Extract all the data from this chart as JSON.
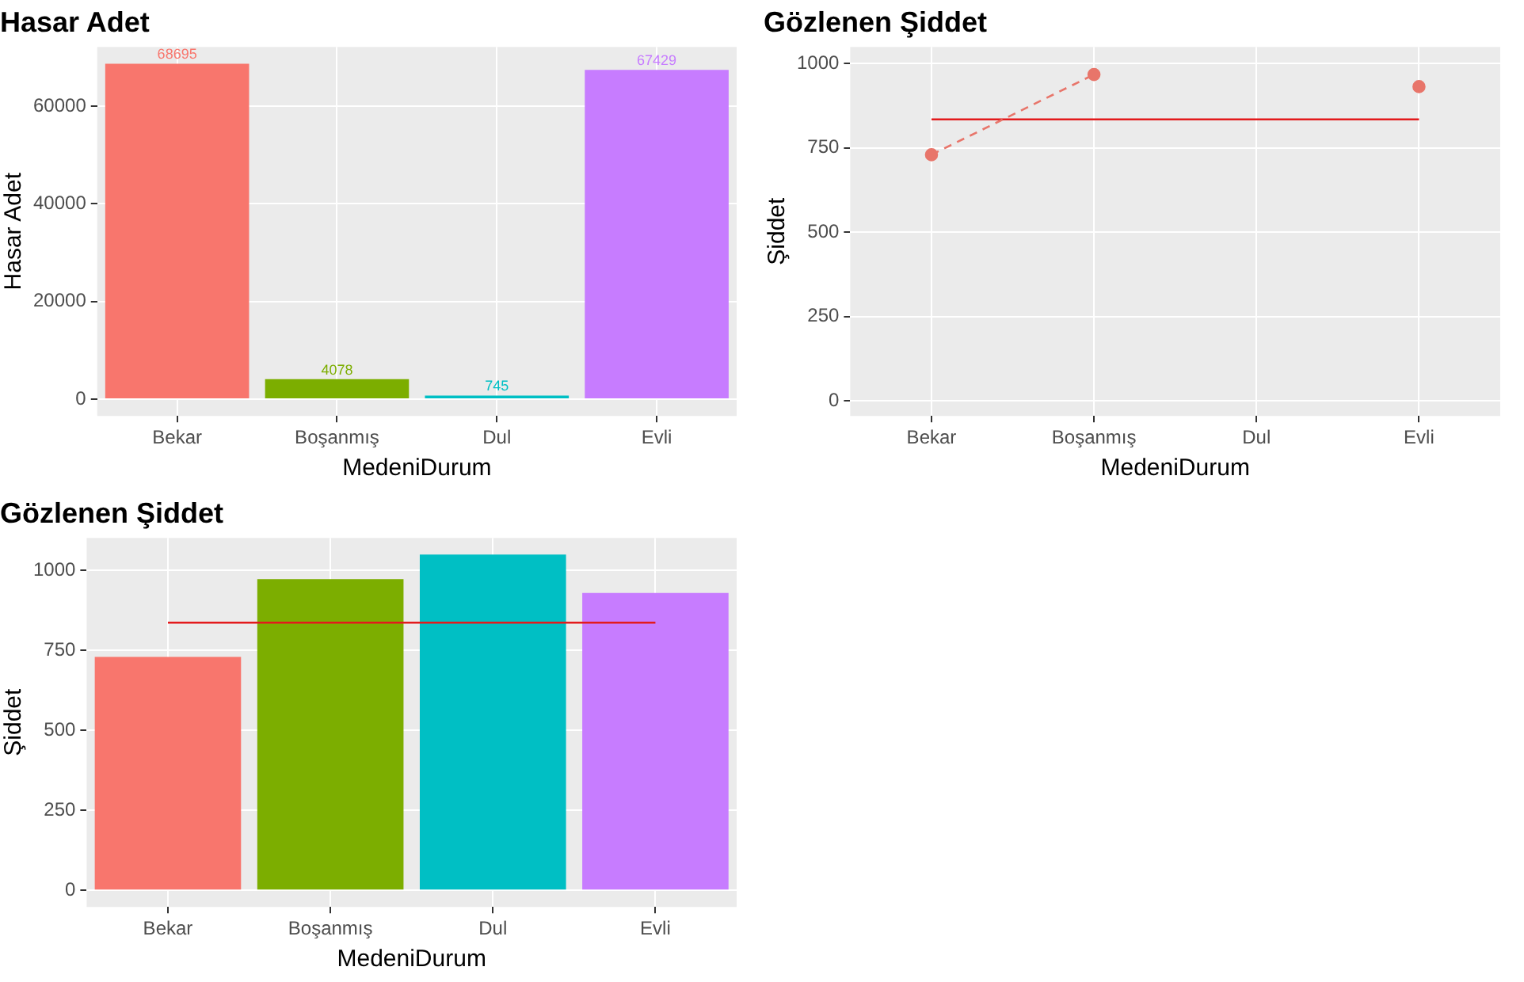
{
  "chart_data": [
    {
      "type": "bar",
      "title": "Hasar Adet",
      "xlabel": "MedeniDurum",
      "ylabel": "Hasar Adet",
      "categories": [
        "Bekar",
        "Boşanmış",
        "Dul",
        "Evli"
      ],
      "values": [
        68695,
        4078,
        745,
        67429
      ],
      "colors": [
        "#f8766d",
        "#7cae00",
        "#00bfc4",
        "#c77cff"
      ],
      "ylim": [
        -3435,
        72130
      ],
      "yticks": [
        0,
        20000,
        40000,
        60000
      ],
      "grid": true,
      "data_labels": true
    },
    {
      "type": "line",
      "title": "Gözlenen Şiddet",
      "xlabel": "MedeniDurum",
      "ylabel": "Şiddet",
      "categories": [
        "Bekar",
        "Boşanmış",
        "Dul",
        "Evli"
      ],
      "series": [
        {
          "color": "#e8756a",
          "values": [
            730,
            968,
            null,
            932
          ],
          "marker": "circle",
          "line_style": "dashed"
        },
        {
          "color": "#e31a1c",
          "values": [
            835,
            835,
            835,
            835
          ],
          "marker": "none",
          "line_style": "solid"
        }
      ],
      "ylim": [
        -45,
        1050
      ],
      "yticks": [
        0,
        250,
        500,
        750,
        1000
      ],
      "grid": true
    },
    {
      "type": "bar",
      "title": "Gözlenen Şiddet",
      "xlabel": "MedeniDurum",
      "ylabel": "Şiddet",
      "categories": [
        "Bekar",
        "Boşanmış",
        "Dul",
        "Evli"
      ],
      "series": [
        {
          "type": "bar",
          "colors": [
            "#f8766d",
            "#7cae00",
            "#00bfc4",
            "#c77cff"
          ],
          "values": [
            730,
            973,
            1050,
            930
          ]
        },
        {
          "type": "line",
          "color": "#e31a1c",
          "values": [
            837,
            837,
            837,
            837
          ],
          "marker": "none",
          "line_style": "solid"
        }
      ],
      "ylim": [
        -52,
        1102
      ],
      "yticks": [
        0,
        250,
        500,
        750,
        1000
      ],
      "grid": true
    }
  ]
}
